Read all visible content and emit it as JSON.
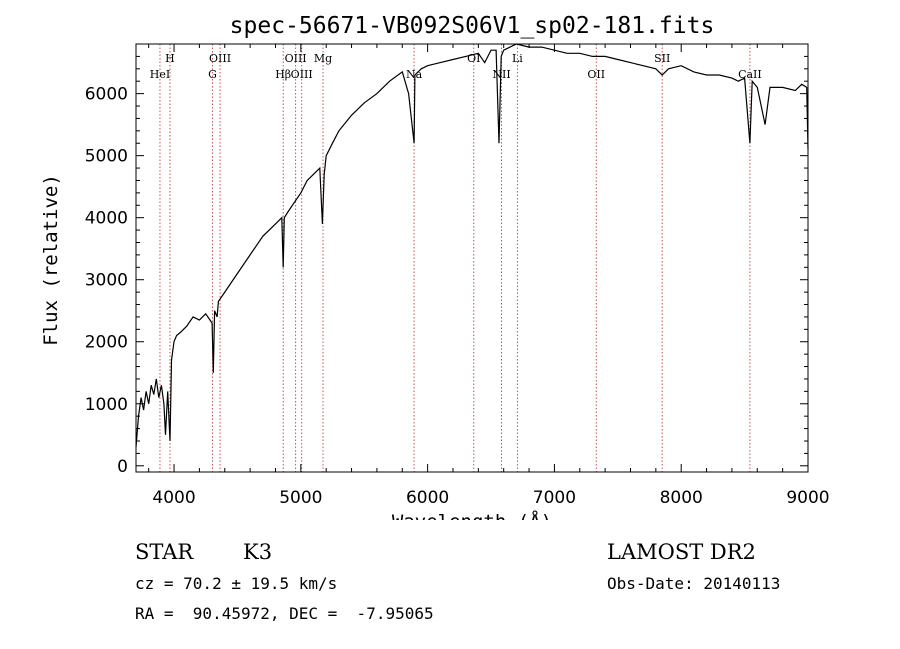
{
  "chart_data": {
    "type": "line",
    "title": "spec-56671-VB092S06V1_sp02-181.fits",
    "xlabel": "Wavelength (Å)",
    "ylabel": "Flux (relative)",
    "xlim": [
      3700,
      9000
    ],
    "ylim": [
      -100,
      6800
    ],
    "xticks": [
      4000,
      5000,
      6000,
      7000,
      8000,
      9000
    ],
    "yticks": [
      0,
      1000,
      2000,
      3000,
      4000,
      5000,
      6000
    ],
    "grid": false,
    "series": [
      {
        "values_x": [
          3700,
          3720,
          3740,
          3760,
          3780,
          3800,
          3820,
          3840,
          3860,
          3880,
          3900,
          3920,
          3933,
          3950,
          3968,
          3980,
          4000,
          4020,
          4050,
          4100,
          4150,
          4200,
          4250,
          4300,
          4310,
          4320,
          4340,
          4350,
          4400,
          4500,
          4600,
          4700,
          4800,
          4850,
          4861,
          4870,
          4900,
          4950,
          5000,
          5050,
          5100,
          5150,
          5170,
          5184,
          5200,
          5250,
          5300,
          5400,
          5500,
          5600,
          5700,
          5800,
          5850,
          5893,
          5900,
          5950,
          6000,
          6100,
          6200,
          6300,
          6400,
          6450,
          6500,
          6540,
          6563,
          6580,
          6600,
          6650,
          6700,
          6800,
          6900,
          7000,
          7100,
          7200,
          7300,
          7400,
          7500,
          7600,
          7700,
          7800,
          7850,
          7900,
          8000,
          8100,
          8200,
          8300,
          8400,
          8450,
          8500,
          8542,
          8560,
          8600,
          8662,
          8700,
          8800,
          8900,
          8950,
          8990,
          9000
        ],
        "values_y": [
          300,
          800,
          1100,
          900,
          1200,
          1000,
          1300,
          1150,
          1400,
          1100,
          1300,
          1000,
          500,
          1200,
          400,
          1700,
          2000,
          2100,
          2150,
          2250,
          2400,
          2350,
          2450,
          2300,
          1500,
          2500,
          2400,
          2650,
          2800,
          3100,
          3400,
          3700,
          3900,
          4000,
          3200,
          4000,
          4100,
          4250,
          4400,
          4600,
          4700,
          4800,
          3900,
          4700,
          5000,
          5200,
          5400,
          5650,
          5850,
          6000,
          6200,
          6350,
          6000,
          5200,
          6300,
          6400,
          6450,
          6500,
          6550,
          6600,
          6650,
          6500,
          6700,
          6700,
          5200,
          6600,
          6700,
          6750,
          6800,
          6750,
          6750,
          6700,
          6650,
          6650,
          6600,
          6600,
          6550,
          6500,
          6450,
          6400,
          6300,
          6400,
          6450,
          6350,
          6300,
          6300,
          6250,
          6200,
          6250,
          5200,
          6200,
          6100,
          5500,
          6100,
          6100,
          6050,
          6150,
          6100,
          5100
        ]
      }
    ],
    "spectral_lines": [
      {
        "label": "HeI",
        "wavelength": 3889
      },
      {
        "label": "H",
        "wavelength": 3968
      },
      {
        "label": "G",
        "wavelength": 4304
      },
      {
        "label": "OIII",
        "wavelength": 4363
      },
      {
        "label": "Hβ",
        "wavelength": 4861
      },
      {
        "label": "OIII",
        "wavelength": 4959
      },
      {
        "label": "OIII",
        "wavelength": 5007
      },
      {
        "label": "Mg",
        "wavelength": 5175
      },
      {
        "label": "Na",
        "wavelength": 5893
      },
      {
        "label": "OI",
        "wavelength": 6364
      },
      {
        "label": "NII",
        "wavelength": 6583
      },
      {
        "label": "Li",
        "wavelength": 6708
      },
      {
        "label": "OII",
        "wavelength": 7330
      },
      {
        "label": "SII",
        "wavelength": 7850
      },
      {
        "label": "CaII",
        "wavelength": 8542
      }
    ],
    "line_color": "#000000",
    "marker_color": "#c04040"
  },
  "info": {
    "object_type": "STAR",
    "spectral_class": "K3",
    "survey": "LAMOST DR2",
    "cz": "cz = 70.2 ± 19.5 km/s",
    "obs_date": "Obs-Date: 20140113",
    "coords": "RA =  90.45972, DEC =  -7.95065"
  }
}
